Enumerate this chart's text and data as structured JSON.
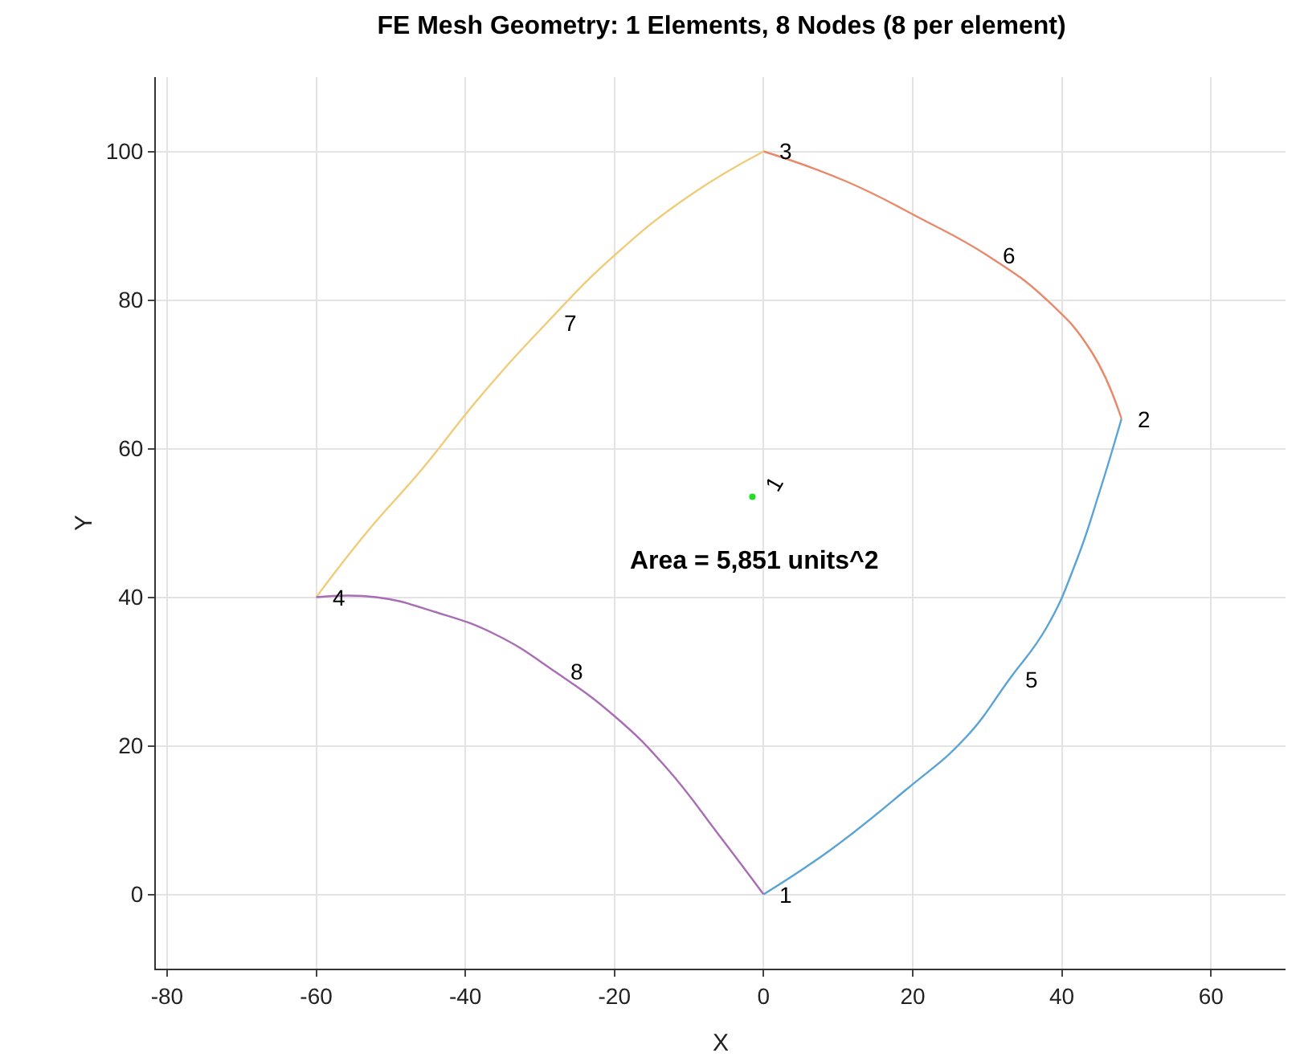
{
  "chart_data": {
    "type": "line",
    "title": "FE Mesh Geometry: 1 Elements, 8 Nodes (8 per element)",
    "xlabel": "X",
    "ylabel": "Y",
    "xlim": [
      -81.5,
      70
    ],
    "ylim": [
      -10,
      110
    ],
    "xticks": [
      -80,
      -60,
      -40,
      -20,
      0,
      20,
      40,
      60
    ],
    "yticks": [
      0,
      20,
      40,
      60,
      80,
      100
    ],
    "grid": true,
    "legend": false,
    "line_style": "solid",
    "series": [
      {
        "color": "#5aa3d6",
        "x": [
          0,
          9,
          19,
          27,
          33,
          38,
          42,
          45,
          48
        ],
        "values": [
          0,
          6,
          14,
          21,
          29,
          36,
          45,
          54,
          64
        ]
      },
      {
        "color": "#e8896a",
        "x": [
          48,
          44,
          38,
          30,
          21,
          11,
          0
        ],
        "values": [
          64,
          73,
          80,
          86,
          91,
          96,
          100
        ]
      },
      {
        "color": "#f0cc78",
        "x": [
          0,
          -10,
          -20,
          -29,
          -38,
          -46,
          -53,
          -60
        ],
        "values": [
          100,
          94,
          86,
          77,
          67,
          57,
          49,
          40
        ]
      },
      {
        "color": "#a86db5",
        "x": [
          -60,
          -52,
          -44,
          -36,
          -28,
          -20,
          -13,
          -6,
          0
        ],
        "values": [
          40,
          40,
          38,
          35,
          30,
          24,
          17,
          8,
          0
        ]
      },
      {
        "type": "scatter",
        "color": "#22dd22",
        "x": [
          -1.5
        ],
        "values": [
          53.5
        ]
      }
    ],
    "annotations": [
      {
        "text": "1",
        "x": 0,
        "y": 0
      },
      {
        "text": "2",
        "x": 48,
        "y": 64
      },
      {
        "text": "3",
        "x": 0,
        "y": 100
      },
      {
        "text": "4",
        "x": -60,
        "y": 40
      },
      {
        "text": "5",
        "x": 33,
        "y": 29
      },
      {
        "text": "6",
        "x": 30,
        "y": 86
      },
      {
        "text": "7",
        "x": -29,
        "y": 77
      },
      {
        "text": "8",
        "x": -28,
        "y": 30
      },
      {
        "text": "1",
        "x": -1.5,
        "y": 53.5
      },
      "Area = 5,851 units^2"
    ]
  }
}
